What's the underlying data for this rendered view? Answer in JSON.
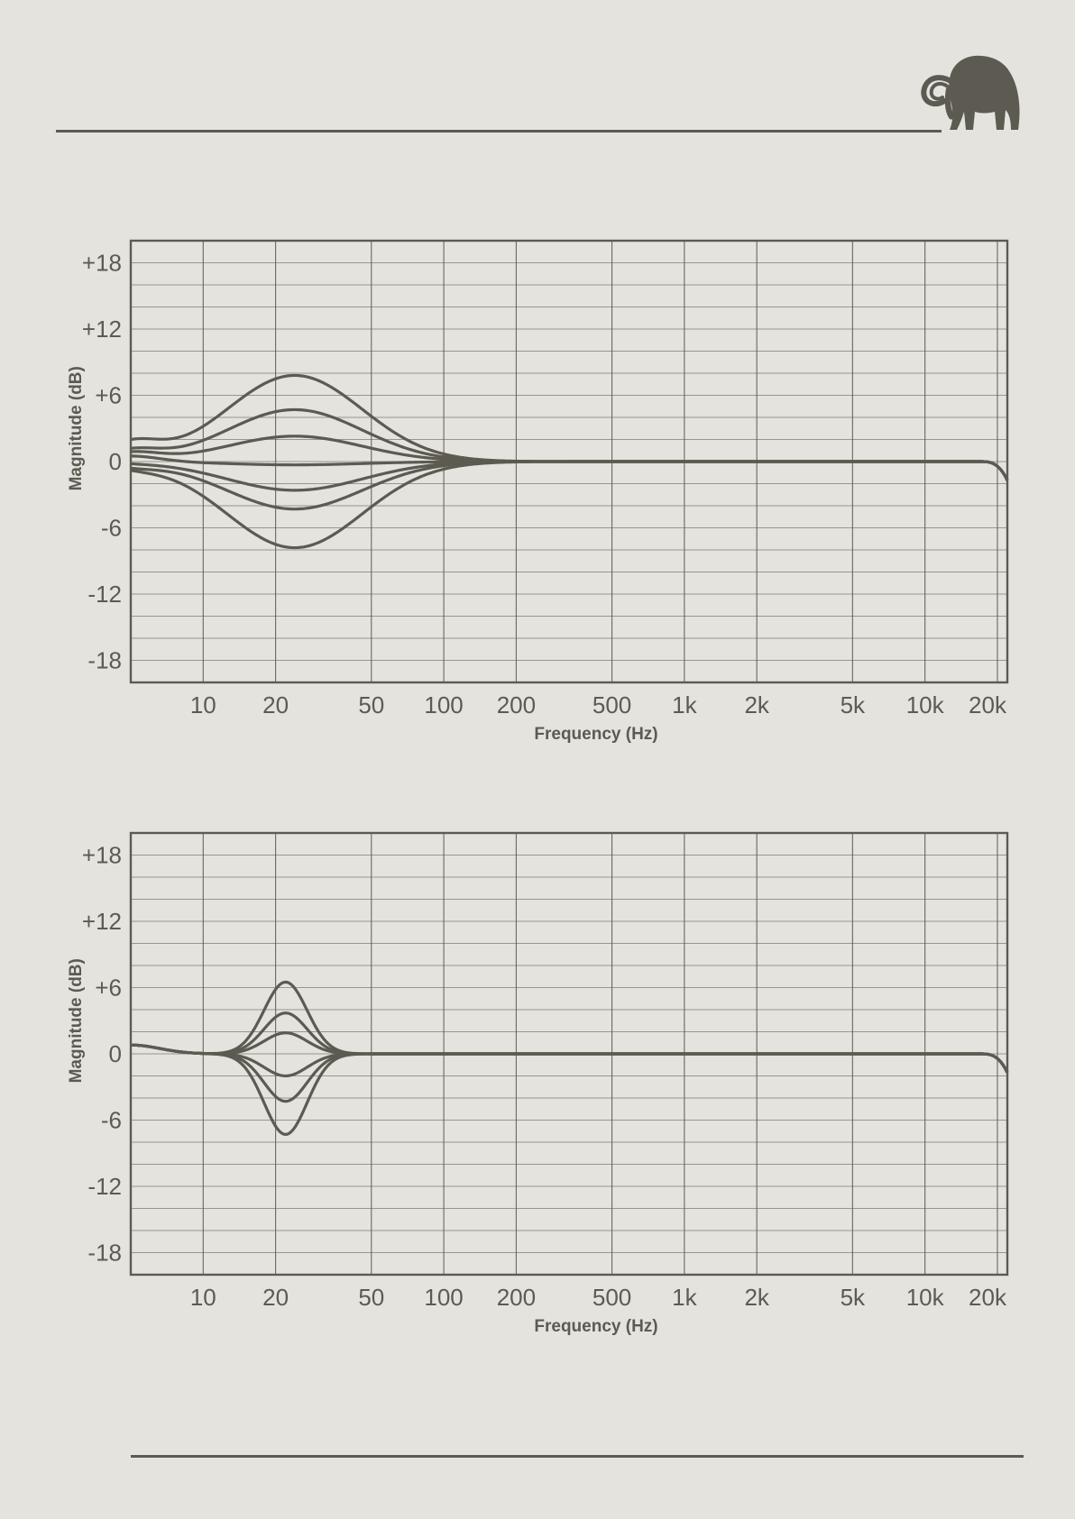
{
  "page": {
    "background": "#e4e3de",
    "ink": "#5d5a51"
  },
  "logo": {
    "icon": "mammoth-icon"
  },
  "chart_data": [
    {
      "type": "line",
      "title": "",
      "xlabel": "Frequency (Hz)",
      "ylabel": "Magnitude (dB)",
      "x_scale": "log",
      "xlim": [
        5,
        22000
      ],
      "ylim": [
        -20,
        20
      ],
      "x_ticks": [
        10,
        20,
        50,
        100,
        200,
        500,
        1000,
        2000,
        5000,
        10000,
        20000
      ],
      "x_tick_labels": [
        "10",
        "20",
        "50",
        "100",
        "200",
        "500",
        "1k",
        "2k",
        "5k",
        "10k",
        "20k"
      ],
      "y_ticks": [
        18,
        12,
        6,
        0,
        -6,
        -12,
        -18
      ],
      "y_tick_labels": [
        "+18",
        "+12",
        "+6",
        "0",
        "-6",
        "-12",
        "-18"
      ],
      "grid": true,
      "legend": "none",
      "series": [
        {
          "gain_db": 7.8,
          "center_hz": 24,
          "width_oct": 2.2,
          "low_end_db": 2.0,
          "points": [
            [
              5,
              2.0
            ],
            [
              10,
              4.6
            ],
            [
              24,
              7.8
            ],
            [
              50,
              4.4
            ],
            [
              100,
              1.6
            ],
            [
              200,
              0.3
            ],
            [
              500,
              0.0
            ],
            [
              20000,
              0.0
            ],
            [
              22000,
              -1.7
            ]
          ]
        },
        {
          "gain_db": 4.7,
          "center_hz": 24,
          "width_oct": 2.2,
          "low_end_db": 1.2,
          "points": [
            [
              5,
              1.2
            ],
            [
              10,
              2.8
            ],
            [
              24,
              4.7
            ],
            [
              50,
              2.6
            ],
            [
              100,
              1.0
            ],
            [
              200,
              0.2
            ],
            [
              500,
              0.0
            ],
            [
              20000,
              0.0
            ],
            [
              22000,
              -1.7
            ]
          ]
        },
        {
          "gain_db": 2.3,
          "center_hz": 24,
          "width_oct": 2.2,
          "low_end_db": 0.9,
          "points": [
            [
              5,
              0.9
            ],
            [
              10,
              1.5
            ],
            [
              24,
              2.3
            ],
            [
              50,
              1.3
            ],
            [
              100,
              0.5
            ],
            [
              200,
              0.1
            ],
            [
              500,
              0.0
            ],
            [
              20000,
              0.0
            ],
            [
              22000,
              -1.7
            ]
          ]
        },
        {
          "gain_db": -0.3,
          "center_hz": 24,
          "width_oct": 2.2,
          "low_end_db": 0.5,
          "points": [
            [
              5,
              0.5
            ],
            [
              10,
              0.0
            ],
            [
              24,
              -0.3
            ],
            [
              50,
              -0.2
            ],
            [
              100,
              -0.1
            ],
            [
              500,
              0.0
            ],
            [
              20000,
              0.0
            ],
            [
              22000,
              -1.7
            ]
          ]
        },
        {
          "gain_db": -2.6,
          "center_hz": 24,
          "width_oct": 2.2,
          "low_end_db": -0.2,
          "points": [
            [
              5,
              -0.2
            ],
            [
              10,
              -1.5
            ],
            [
              24,
              -2.6
            ],
            [
              50,
              -1.5
            ],
            [
              100,
              -0.6
            ],
            [
              200,
              -0.1
            ],
            [
              500,
              0.0
            ],
            [
              20000,
              0.0
            ],
            [
              22000,
              -1.7
            ]
          ]
        },
        {
          "gain_db": -4.3,
          "center_hz": 24,
          "width_oct": 2.2,
          "low_end_db": -0.6,
          "points": [
            [
              5,
              -0.6
            ],
            [
              10,
              -2.5
            ],
            [
              24,
              -4.3
            ],
            [
              50,
              -2.5
            ],
            [
              100,
              -1.0
            ],
            [
              200,
              -0.2
            ],
            [
              500,
              0.0
            ],
            [
              20000,
              0.0
            ],
            [
              22000,
              -1.7
            ]
          ]
        },
        {
          "gain_db": -7.8,
          "center_hz": 24,
          "width_oct": 2.2,
          "low_end_db": -0.8,
          "points": [
            [
              5,
              -0.8
            ],
            [
              10,
              -3.6
            ],
            [
              24,
              -7.8
            ],
            [
              50,
              -4.4
            ],
            [
              100,
              -1.6
            ],
            [
              200,
              -0.3
            ],
            [
              500,
              0.0
            ],
            [
              20000,
              0.0
            ],
            [
              22000,
              -1.7
            ]
          ]
        }
      ]
    },
    {
      "type": "line",
      "title": "",
      "xlabel": "Frequency (Hz)",
      "ylabel": "Magnitude (dB)",
      "x_scale": "log",
      "xlim": [
        5,
        22000
      ],
      "ylim": [
        -20,
        20
      ],
      "x_ticks": [
        10,
        20,
        50,
        100,
        200,
        500,
        1000,
        2000,
        5000,
        10000,
        20000
      ],
      "x_tick_labels": [
        "10",
        "20",
        "50",
        "100",
        "200",
        "500",
        "1k",
        "2k",
        "5k",
        "10k",
        "20k"
      ],
      "y_ticks": [
        18,
        12,
        6,
        0,
        -6,
        -12,
        -18
      ],
      "y_tick_labels": [
        "+18",
        "+12",
        "+6",
        "0",
        "-6",
        "-12",
        "-18"
      ],
      "grid": true,
      "legend": "none",
      "series": [
        {
          "gain_db": 6.5,
          "center_hz": 22,
          "width_oct": 0.7,
          "low_end_db": 0.8,
          "points": [
            [
              5,
              0.8
            ],
            [
              10,
              0.3
            ],
            [
              16,
              1.5
            ],
            [
              22,
              6.5
            ],
            [
              32,
              1.6
            ],
            [
              50,
              0.3
            ],
            [
              100,
              0.0
            ],
            [
              20000,
              0.0
            ],
            [
              22000,
              -1.7
            ]
          ]
        },
        {
          "gain_db": 3.7,
          "center_hz": 22,
          "width_oct": 0.7,
          "low_end_db": 0.8,
          "points": [
            [
              5,
              0.8
            ],
            [
              10,
              0.2
            ],
            [
              16,
              1.0
            ],
            [
              22,
              3.7
            ],
            [
              32,
              1.0
            ],
            [
              50,
              0.2
            ],
            [
              100,
              0.0
            ],
            [
              20000,
              0.0
            ],
            [
              22000,
              -1.7
            ]
          ]
        },
        {
          "gain_db": 1.9,
          "center_hz": 22,
          "width_oct": 0.7,
          "low_end_db": 0.8,
          "points": [
            [
              5,
              0.8
            ],
            [
              10,
              0.1
            ],
            [
              16,
              0.5
            ],
            [
              22,
              1.9
            ],
            [
              32,
              0.5
            ],
            [
              50,
              0.1
            ],
            [
              100,
              0.0
            ],
            [
              20000,
              0.0
            ],
            [
              22000,
              -1.7
            ]
          ]
        },
        {
          "gain_db": -2.0,
          "center_hz": 22,
          "width_oct": 0.7,
          "low_end_db": 0.8,
          "points": [
            [
              5,
              0.8
            ],
            [
              10,
              -0.2
            ],
            [
              16,
              -0.6
            ],
            [
              22,
              -2.0
            ],
            [
              32,
              -0.6
            ],
            [
              50,
              -0.1
            ],
            [
              100,
              0.0
            ],
            [
              20000,
              0.0
            ],
            [
              22000,
              -1.7
            ]
          ]
        },
        {
          "gain_db": -4.3,
          "center_hz": 22,
          "width_oct": 0.7,
          "low_end_db": 0.8,
          "points": [
            [
              5,
              0.8
            ],
            [
              10,
              -0.3
            ],
            [
              16,
              -1.2
            ],
            [
              22,
              -4.3
            ],
            [
              32,
              -1.2
            ],
            [
              50,
              -0.2
            ],
            [
              100,
              0.0
            ],
            [
              20000,
              0.0
            ],
            [
              22000,
              -1.7
            ]
          ]
        },
        {
          "gain_db": -7.3,
          "center_hz": 22,
          "width_oct": 0.7,
          "low_end_db": 0.8,
          "points": [
            [
              5,
              0.8
            ],
            [
              10,
              -0.4
            ],
            [
              16,
              -1.9
            ],
            [
              22,
              -7.3
            ],
            [
              32,
              -1.9
            ],
            [
              50,
              -0.3
            ],
            [
              100,
              0.0
            ],
            [
              20000,
              0.0
            ],
            [
              22000,
              -1.7
            ]
          ]
        }
      ]
    }
  ]
}
